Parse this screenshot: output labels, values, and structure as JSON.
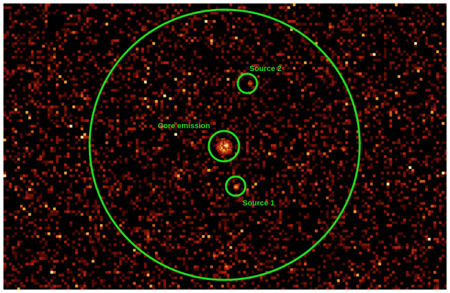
{
  "image": {
    "background": "#000000",
    "colormap": [
      "#000000",
      "#4a0a05",
      "#7a1208",
      "#a8200c",
      "#d2541a",
      "#f0a63a",
      "#ffe9a8",
      "#ffffff"
    ],
    "region_color": "#22dd22"
  },
  "regions": {
    "core": {
      "label": "Core emission"
    },
    "source1": {
      "label": "Source 1"
    },
    "source2": {
      "label": "Source 2"
    }
  }
}
